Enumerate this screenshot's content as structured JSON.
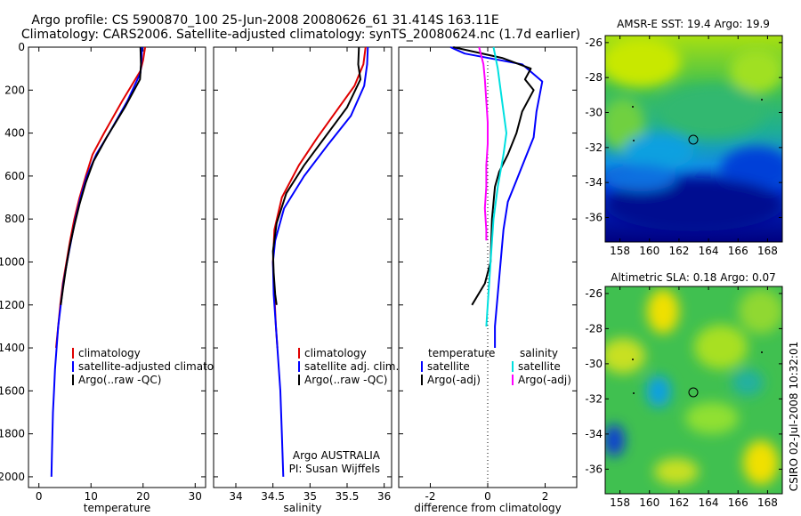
{
  "title_line1": "Argo profile: CS 5900870_100 25-Jun-2008 20080626_61 31.414S 163.11E",
  "title_line2": "Climatology: CARS2006. Satellite-adjusted climatology: synTS_20080624.nc (1.7d earlier)",
  "side_label": "CSIRO 02-Jul-2008 10:32:01",
  "colors": {
    "climatology": "#e00000",
    "satellite": "#0000ff",
    "argo": "#000000",
    "sat_salinity": "#00e0e0",
    "argo_salinity": "#ff00ff"
  },
  "chart_data": [
    {
      "type": "line",
      "panel": "temperature",
      "xlabel": "temperature",
      "xlim": [
        -2,
        32
      ],
      "ylim": [
        0,
        2050
      ],
      "y_reversed": true,
      "xticks": [
        "0",
        "10",
        "20",
        "30"
      ],
      "yticks": [
        "0",
        "200",
        "400",
        "600",
        "800",
        "1000",
        "1200",
        "1400",
        "1600",
        "1800",
        "2000"
      ],
      "legend": [
        "climatology",
        "satellite-adjusted climatolog",
        "Argo(..raw -QC)"
      ],
      "series": [
        {
          "name": "climatology",
          "color": "#e00000",
          "points": [
            [
              20.4,
              0
            ],
            [
              20,
              60
            ],
            [
              19.5,
              110
            ],
            [
              16,
              250
            ],
            [
              12.5,
              400
            ],
            [
              10.3,
              500
            ],
            [
              9,
              600
            ],
            [
              7.8,
              700
            ],
            [
              6.8,
              800
            ],
            [
              6,
              900
            ],
            [
              5.3,
              1000
            ],
            [
              4.6,
              1100
            ],
            [
              4.1,
              1200
            ],
            [
              3.7,
              1300
            ],
            [
              3.3,
              1400
            ]
          ]
        },
        {
          "name": "satellite-adjusted climatology",
          "color": "#0000ff",
          "points": [
            [
              19.8,
              0
            ],
            [
              19.7,
              60
            ],
            [
              19.5,
              120
            ],
            [
              17,
              250
            ],
            [
              13.5,
              400
            ],
            [
              11,
              500
            ],
            [
              9.2,
              600
            ],
            [
              8,
              700
            ],
            [
              7,
              800
            ],
            [
              6.2,
              900
            ],
            [
              5.4,
              1000
            ],
            [
              4.7,
              1100
            ],
            [
              4.2,
              1200
            ],
            [
              3.7,
              1300
            ],
            [
              3.4,
              1400
            ],
            [
              3.1,
              1500
            ],
            [
              2.9,
              1600
            ],
            [
              2.7,
              1700
            ],
            [
              2.6,
              1800
            ],
            [
              2.5,
              1900
            ],
            [
              2.4,
              2000
            ]
          ]
        },
        {
          "name": "Argo(..raw -QC)",
          "color": "#000000",
          "points": [
            [
              19.5,
              0
            ],
            [
              19.6,
              80
            ],
            [
              19.4,
              150
            ],
            [
              16.5,
              280
            ],
            [
              13,
              420
            ],
            [
              10.5,
              530
            ],
            [
              9,
              630
            ],
            [
              7.8,
              730
            ],
            [
              6.8,
              830
            ],
            [
              5.9,
              930
            ],
            [
              5.2,
              1030
            ],
            [
              4.6,
              1130
            ],
            [
              4.2,
              1200
            ]
          ]
        }
      ]
    },
    {
      "type": "line",
      "panel": "salinity",
      "xlabel": "salinity",
      "xlim": [
        33.7,
        36.1
      ],
      "ylim": [
        0,
        2050
      ],
      "y_reversed": true,
      "xticks": [
        "34",
        "34.5",
        "35",
        "35.5",
        "36"
      ],
      "legend": [
        "climatology",
        "satellite adj. clim.",
        "Argo(..raw -QC)"
      ],
      "annotation": [
        "Argo AUSTRALIA",
        "PI: Susan Wijffels"
      ],
      "series": [
        {
          "name": "climatology",
          "color": "#e00000",
          "points": [
            [
              35.75,
              0
            ],
            [
              35.72,
              80
            ],
            [
              35.6,
              180
            ],
            [
              35.35,
              300
            ],
            [
              35.1,
              420
            ],
            [
              34.85,
              550
            ],
            [
              34.62,
              700
            ],
            [
              34.52,
              850
            ],
            [
              34.5,
              1000
            ],
            [
              34.52,
              1150
            ],
            [
              34.54,
              1300
            ],
            [
              34.56,
              1400
            ]
          ]
        },
        {
          "name": "satellite adj. clim.",
          "color": "#0000ff",
          "points": [
            [
              35.78,
              0
            ],
            [
              35.77,
              80
            ],
            [
              35.73,
              180
            ],
            [
              35.55,
              320
            ],
            [
              35.25,
              450
            ],
            [
              34.92,
              600
            ],
            [
              34.65,
              750
            ],
            [
              34.53,
              900
            ],
            [
              34.5,
              1000
            ],
            [
              34.51,
              1150
            ],
            [
              34.54,
              1300
            ],
            [
              34.57,
              1450
            ],
            [
              34.6,
              1600
            ],
            [
              34.62,
              1800
            ],
            [
              34.64,
              2000
            ]
          ]
        },
        {
          "name": "Argo(..raw -QC)",
          "color": "#000000",
          "points": [
            [
              35.66,
              0
            ],
            [
              35.65,
              80
            ],
            [
              35.68,
              150
            ],
            [
              35.5,
              280
            ],
            [
              35.2,
              420
            ],
            [
              34.92,
              550
            ],
            [
              34.68,
              680
            ],
            [
              34.55,
              820
            ],
            [
              34.5,
              950
            ],
            [
              34.51,
              1050
            ],
            [
              34.53,
              1150
            ],
            [
              34.55,
              1200
            ]
          ]
        }
      ]
    },
    {
      "type": "line",
      "panel": "difference",
      "xlabel": "difference from climatology",
      "xlim": [
        -3.1,
        3.1
      ],
      "ylim": [
        0,
        2050
      ],
      "y_reversed": true,
      "xticks": [
        "-2",
        "0",
        "2"
      ],
      "legend_headers": [
        "temperature",
        "salinity"
      ],
      "legend": [
        "satellite",
        "Argo(-adj)",
        "satellite",
        "Argo(-adj)"
      ],
      "series": [
        {
          "name": "satellite",
          "group": "temperature",
          "color": "#0000ff",
          "points": [
            [
              -1.3,
              0
            ],
            [
              -0.8,
              30
            ],
            [
              1.2,
              80
            ],
            [
              1.9,
              160
            ],
            [
              1.7,
              300
            ],
            [
              1.6,
              420
            ],
            [
              1.3,
              520
            ],
            [
              1,
              620
            ],
            [
              0.7,
              720
            ],
            [
              0.55,
              850
            ],
            [
              0.45,
              1000
            ],
            [
              0.35,
              1150
            ],
            [
              0.25,
              1300
            ],
            [
              0.25,
              1400
            ]
          ]
        },
        {
          "name": "Argo(-adj)",
          "group": "temperature",
          "color": "#000000",
          "points": [
            [
              -1.2,
              0
            ],
            [
              0.5,
              50
            ],
            [
              1.5,
              100
            ],
            [
              1.3,
              150
            ],
            [
              1.6,
              200
            ],
            [
              1.2,
              300
            ],
            [
              1,
              400
            ],
            [
              0.7,
              500
            ],
            [
              0.4,
              580
            ],
            [
              0.25,
              650
            ],
            [
              0.15,
              800
            ],
            [
              0.1,
              1000
            ],
            [
              -0.1,
              1100
            ],
            [
              -0.55,
              1200
            ]
          ]
        },
        {
          "name": "satellite",
          "group": "salinity",
          "color": "#00e0e0",
          "points": [
            [
              0.2,
              0
            ],
            [
              0.35,
              100
            ],
            [
              0.5,
              250
            ],
            [
              0.65,
              400
            ],
            [
              0.55,
              500
            ],
            [
              0.35,
              650
            ],
            [
              0.2,
              800
            ],
            [
              0.1,
              1000
            ],
            [
              0,
              1200
            ],
            [
              -0.05,
              1300
            ]
          ]
        },
        {
          "name": "Argo(-adj)",
          "group": "salinity",
          "color": "#ff00ff",
          "points": [
            [
              -0.3,
              0
            ],
            [
              -0.15,
              80
            ],
            [
              -0.1,
              150
            ],
            [
              -0.05,
              250
            ],
            [
              0,
              350
            ],
            [
              0,
              450
            ],
            [
              -0.05,
              550
            ],
            [
              -0.05,
              650
            ],
            [
              -0.1,
              750
            ],
            [
              -0.05,
              850
            ],
            [
              -0.05,
              900
            ]
          ]
        }
      ]
    },
    {
      "type": "heatmap",
      "panel": "sst_map",
      "title": "AMSR-E SST: 19.4 Argo: 19.9",
      "xticks": [
        "158",
        "160",
        "162",
        "164",
        "166",
        "168"
      ],
      "yticks": [
        "-26",
        "-28",
        "-30",
        "-32",
        "-34",
        "-36"
      ],
      "xlim": [
        157,
        169
      ],
      "ylim": [
        -37.4,
        -25.6
      ],
      "profile_location": [
        163.11,
        -31.414
      ]
    },
    {
      "type": "heatmap",
      "panel": "sla_map",
      "title": "Altimetric SLA: 0.18 Argo: 0.07",
      "xticks": [
        "158",
        "160",
        "162",
        "164",
        "166",
        "168"
      ],
      "yticks": [
        "-26",
        "-28",
        "-30",
        "-32",
        "-34",
        "-36"
      ],
      "xlim": [
        157,
        169
      ],
      "ylim": [
        -37.4,
        -25.6
      ],
      "profile_location": [
        163.11,
        -31.414
      ]
    }
  ]
}
